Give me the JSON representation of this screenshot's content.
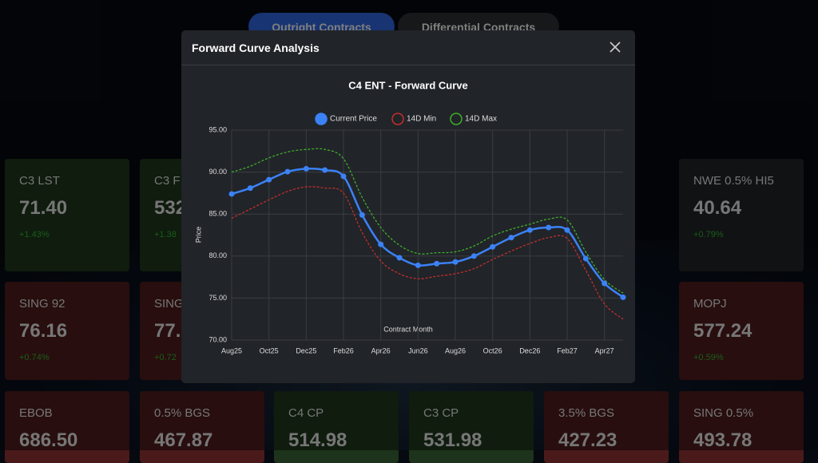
{
  "tabs": [
    "Outright Contracts",
    "Differential Contracts"
  ],
  "tiles": [
    {
      "name": "C3 LST",
      "price": "71.40",
      "change": "+1.43%"
    },
    {
      "name": "C3 F",
      "price": "532",
      "change": "+1.38"
    },
    {
      "name": "NWE 0.5% HI5",
      "price": "40.64",
      "change": "+0.79%"
    },
    {
      "name": "SING 92",
      "price": "76.16",
      "change": "+0.74%"
    },
    {
      "name": "SING",
      "price": "77.",
      "change": "+0.72"
    },
    {
      "name": "MOPJ",
      "price": "577.24",
      "change": "+0.59%"
    },
    {
      "name": "EBOB",
      "price": "686.50"
    },
    {
      "name": "0.5% BGS",
      "price": "467.87"
    },
    {
      "name": "C4 CP",
      "price": "514.98"
    },
    {
      "name": "C3 CP",
      "price": "531.98"
    },
    {
      "name": "3.5% BGS",
      "price": "427.23"
    },
    {
      "name": "SING 0.5%",
      "price": "493.78"
    }
  ],
  "modal": {
    "title": "Forward Curve Analysis"
  },
  "chart_data": {
    "type": "line",
    "title": "C4 ENT - Forward Curve",
    "x_label": "Contract Month",
    "y_label": "Price",
    "categories": [
      "Aug25",
      null,
      "Oct25",
      null,
      "Dec25",
      null,
      "Feb26",
      null,
      "Apr26",
      null,
      "Jun26",
      null,
      "Aug26",
      null,
      "Oct26",
      null,
      "Dec26",
      null,
      "Feb27",
      null,
      "Apr27",
      null
    ],
    "series": [
      {
        "name": "Current Price",
        "color": "#3b82f6",
        "style": "solid",
        "values": [
          87.4,
          88.1,
          89.1,
          90.05,
          90.4,
          90.25,
          89.5,
          84.9,
          81.4,
          79.8,
          78.9,
          79.1,
          79.3,
          80.0,
          81.1,
          82.2,
          83.1,
          83.4,
          83.1,
          79.7,
          76.75,
          75.1
        ]
      },
      {
        "name": "14D Min",
        "color": "#c0302b",
        "style": "dashed",
        "values": [
          84.5,
          85.6,
          86.7,
          87.7,
          88.25,
          88.1,
          87.5,
          82.8,
          79.4,
          77.9,
          77.3,
          77.6,
          77.9,
          78.5,
          79.6,
          80.6,
          81.5,
          82.2,
          82.1,
          78.3,
          74.3,
          72.5
        ]
      },
      {
        "name": "14D Max",
        "color": "#3fae2a",
        "style": "dashed",
        "values": [
          90.0,
          90.7,
          91.7,
          92.4,
          92.7,
          92.7,
          91.6,
          87.0,
          83.4,
          81.3,
          80.3,
          80.4,
          80.5,
          81.2,
          82.4,
          83.2,
          83.8,
          84.4,
          84.3,
          80.5,
          77.2,
          75.6
        ]
      }
    ],
    "ylim": [
      70,
      95
    ],
    "yticks": [
      {
        "value": 70,
        "label": "70.00"
      },
      {
        "value": 75,
        "label": "75.00"
      },
      {
        "value": 80,
        "label": "80.00"
      },
      {
        "value": 85,
        "label": "85.00"
      },
      {
        "value": 90,
        "label": "90.00"
      },
      {
        "value": 95,
        "label": "95.00"
      }
    ],
    "grid": true,
    "legend": "top"
  }
}
